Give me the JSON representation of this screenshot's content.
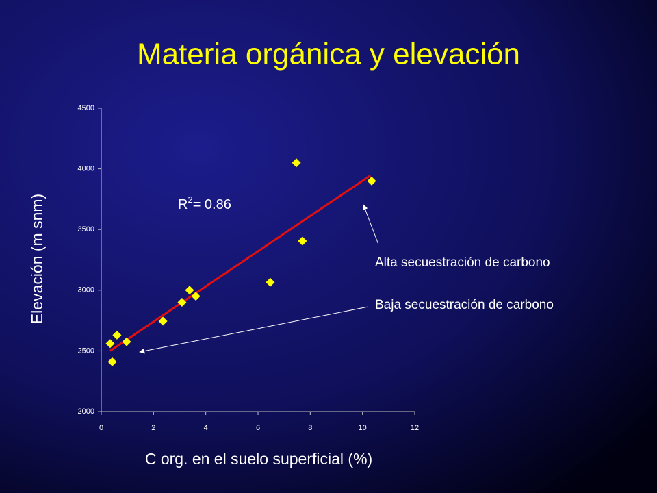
{
  "chart_data": {
    "type": "scatter",
    "title": "Materia orgánica y elevación",
    "x_label": "C org. en el suelo superficial (%)",
    "y_label": "Elevación  (m snm)",
    "series": [
      {
        "color": "#ffff00",
        "x": [
          0.34,
          0.42,
          0.6,
          0.97,
          2.36,
          3.09,
          3.38,
          3.62,
          6.47,
          7.47,
          7.7,
          10.35
        ],
        "values": [
          2560,
          2410,
          2630,
          2575,
          2745,
          2900,
          3000,
          2950,
          3065,
          4050,
          3405,
          3900
        ]
      }
    ],
    "trendline": {
      "color": "#e01010",
      "x": [
        0.34,
        10.3
      ],
      "values": [
        2500,
        3945
      ]
    },
    "r_squared": {
      "label": "R",
      "sup": "2",
      "text": "= 0.86"
    },
    "annotations": [
      "Alta secuestración de carbono",
      "Baja secuestración de carbono"
    ],
    "xlim": [
      0,
      12
    ],
    "xticks": [
      0,
      2,
      4,
      6,
      8,
      10,
      12
    ],
    "ylim": [
      2000,
      4500
    ],
    "yticks": [
      2000,
      2500,
      3000,
      3500,
      4000,
      4500
    ],
    "grid": false
  }
}
